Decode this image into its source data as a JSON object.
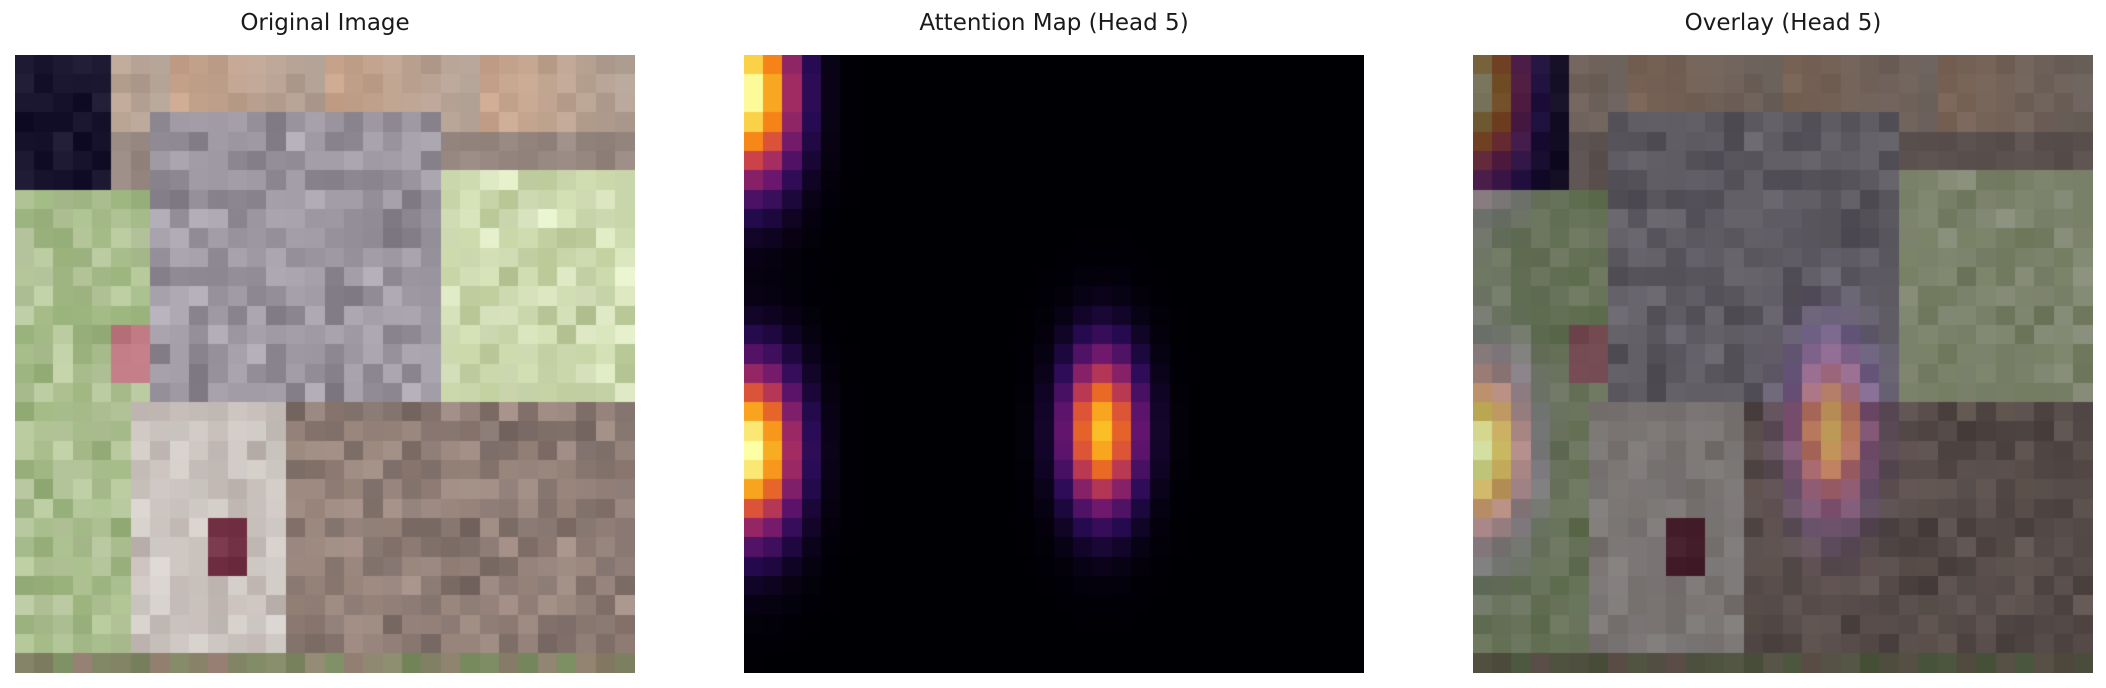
{
  "panels": [
    {
      "title": "Original Image",
      "kind": "original"
    },
    {
      "title": "Attention Map (Head 5)",
      "kind": "attention"
    },
    {
      "title": "Overlay (Head 5)",
      "kind": "overlay"
    }
  ]
}
